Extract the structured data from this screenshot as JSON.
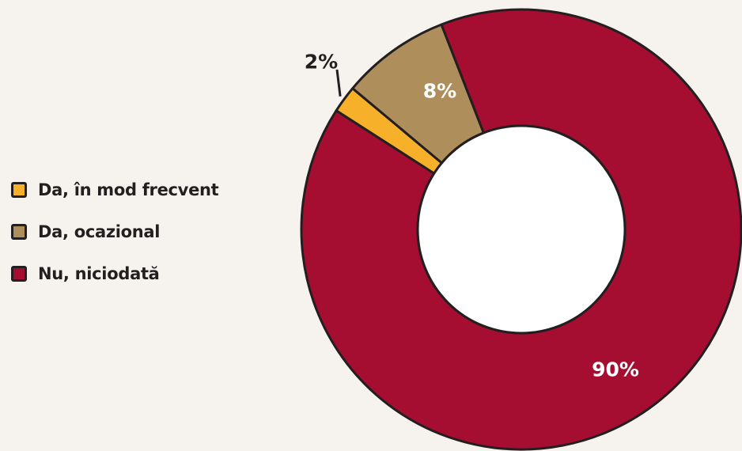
{
  "chart_data": {
    "type": "pie",
    "title": "",
    "categories": [
      "Da, în mod frecvent",
      "Da, ocazional",
      "Nu, niciodată"
    ],
    "values": [
      2,
      8,
      90
    ],
    "value_labels": [
      "2%",
      "8%",
      "90%"
    ],
    "colors": [
      "#f7b02a",
      "#ae8e5a",
      "#a50d31"
    ],
    "donut": true,
    "legend_position": "left"
  }
}
